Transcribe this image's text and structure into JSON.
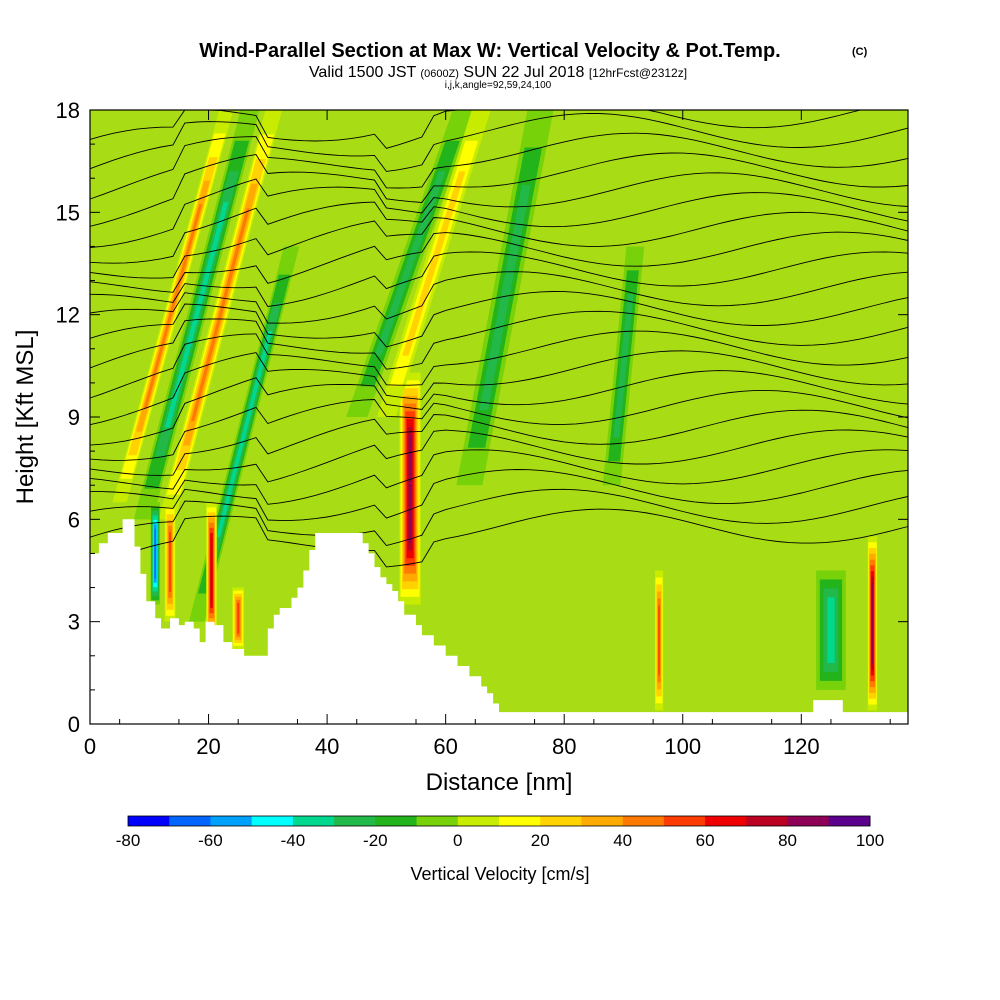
{
  "title": {
    "main": "Wind-Parallel Section at Max W: Vertical Velocity & Pot.Temp.",
    "mark": "(C)",
    "valid_a": "Valid 1500 JST",
    "valid_b": "(0600Z)",
    "valid_c": "SUN 22 Jul 2018",
    "valid_d": "[12hrFcst@2312z]",
    "params": "i,j,k,angle=92,59,24,100"
  },
  "chart_data": {
    "type": "heatmap",
    "xlabel": "Distance [nm]",
    "ylabel": "Height [Kft MSL]",
    "xlim": [
      0,
      138
    ],
    "ylim": [
      0,
      18
    ],
    "x_ticks": [
      0,
      20,
      40,
      60,
      80,
      100,
      120
    ],
    "y_ticks": [
      0,
      3,
      6,
      9,
      12,
      15,
      18
    ],
    "x_tick_labels": [
      "0",
      "20",
      "40",
      "60",
      "80",
      "100",
      "120"
    ],
    "y_tick_labels": [
      "0",
      "3",
      "6",
      "9",
      "12",
      "15",
      "18"
    ],
    "colorbar": {
      "label": "Vertical Velocity [cm/s]",
      "min": -80,
      "max": 100,
      "step": 10,
      "tick_values": [
        -80,
        -60,
        -40,
        -20,
        0,
        20,
        40,
        60,
        80,
        100
      ],
      "tick_labels": [
        "-80",
        "-60",
        "-40",
        "-20",
        "0",
        "20",
        "40",
        "60",
        "80",
        "100"
      ],
      "colors": [
        "#0000ff",
        "#0066ff",
        "#00a0ff",
        "#00ffff",
        "#00d890",
        "#22b84a",
        "#22b41a",
        "#77d20a",
        "#c8ec00",
        "#ffff00",
        "#ffd200",
        "#ffaa00",
        "#ff7a00",
        "#ff3c00",
        "#ee0000",
        "#bb0022",
        "#8e0055",
        "#5a008c"
      ]
    },
    "terrain_profile": [
      [
        0,
        5.0
      ],
      [
        1.5,
        5.0
      ],
      [
        1.5,
        5.3
      ],
      [
        3,
        5.3
      ],
      [
        3,
        5.6
      ],
      [
        5.5,
        5.6
      ],
      [
        5.5,
        6.0
      ],
      [
        7.5,
        6.0
      ],
      [
        7.5,
        5.2
      ],
      [
        8.5,
        5.2
      ],
      [
        8.5,
        4.4
      ],
      [
        9.5,
        4.4
      ],
      [
        9.5,
        3.6
      ],
      [
        11,
        3.6
      ],
      [
        11,
        3.1
      ],
      [
        12,
        3.1
      ],
      [
        12,
        2.8
      ],
      [
        13.5,
        2.8
      ],
      [
        13.5,
        3.1
      ],
      [
        15,
        3.1
      ],
      [
        15,
        2.9
      ],
      [
        16,
        2.9
      ],
      [
        16,
        3.0
      ],
      [
        17.5,
        3.0
      ],
      [
        17.5,
        2.8
      ],
      [
        18.5,
        2.8
      ],
      [
        18.5,
        2.4
      ],
      [
        19.5,
        2.4
      ],
      [
        19.5,
        3.0
      ],
      [
        21,
        3.0
      ],
      [
        21,
        2.9
      ],
      [
        22.5,
        2.9
      ],
      [
        22.5,
        2.4
      ],
      [
        24,
        2.4
      ],
      [
        24,
        2.2
      ],
      [
        26,
        2.2
      ],
      [
        26,
        2.0
      ],
      [
        30,
        2.0
      ],
      [
        30,
        2.8
      ],
      [
        31,
        2.8
      ],
      [
        31,
        3.2
      ],
      [
        32,
        3.2
      ],
      [
        32,
        3.4
      ],
      [
        34,
        3.4
      ],
      [
        34,
        3.7
      ],
      [
        35,
        3.7
      ],
      [
        35,
        4.0
      ],
      [
        36,
        4.0
      ],
      [
        36,
        4.5
      ],
      [
        37,
        4.5
      ],
      [
        37,
        5.1
      ],
      [
        38,
        5.1
      ],
      [
        38,
        5.6
      ],
      [
        46,
        5.6
      ],
      [
        46,
        5.3
      ],
      [
        47,
        5.3
      ],
      [
        47,
        5.0
      ],
      [
        48,
        5.0
      ],
      [
        48,
        4.6
      ],
      [
        49,
        4.6
      ],
      [
        49,
        4.3
      ],
      [
        50,
        4.3
      ],
      [
        50,
        4.1
      ],
      [
        51,
        4.1
      ],
      [
        51,
        3.9
      ],
      [
        52,
        3.9
      ],
      [
        52,
        3.6
      ],
      [
        53,
        3.6
      ],
      [
        53,
        3.2
      ],
      [
        55,
        3.2
      ],
      [
        55,
        2.9
      ],
      [
        56,
        2.9
      ],
      [
        56,
        2.6
      ],
      [
        58,
        2.6
      ],
      [
        58,
        2.3
      ],
      [
        60,
        2.3
      ],
      [
        60,
        2.0
      ],
      [
        62,
        2.0
      ],
      [
        62,
        1.7
      ],
      [
        64,
        1.7
      ],
      [
        64,
        1.4
      ],
      [
        66,
        1.4
      ],
      [
        66,
        1.1
      ],
      [
        67,
        1.1
      ],
      [
        67,
        0.9
      ],
      [
        68,
        0.9
      ],
      [
        68,
        0.6
      ],
      [
        69,
        0.6
      ],
      [
        69,
        0.35
      ],
      [
        122,
        0.35
      ],
      [
        122,
        0.7
      ],
      [
        127,
        0.7
      ],
      [
        127,
        0.35
      ],
      [
        138,
        0.35
      ],
      [
        138,
        0
      ],
      [
        0,
        0
      ]
    ],
    "velocity_features": [
      {
        "x0": 9,
        "x1": 27,
        "z0": 6.0,
        "z1": 18,
        "w": -35,
        "width": 1.6,
        "note": "downdraft band"
      },
      {
        "x0": 5,
        "x1": 23,
        "z0": 6.5,
        "z1": 18,
        "w": 45,
        "width": 1.2
      },
      {
        "x0": 13,
        "x1": 31,
        "z0": 6.0,
        "z1": 18,
        "w": 45,
        "width": 1.4
      },
      {
        "x0": 18,
        "x1": 34,
        "z0": 3.0,
        "z1": 14,
        "w": -38,
        "width": 1.3
      },
      {
        "x0": 20.5,
        "x1": 20.5,
        "z0": 2.5,
        "z1": 6.5,
        "w": 80,
        "width": 0.9
      },
      {
        "x0": 11,
        "x1": 11,
        "z0": 3.5,
        "z1": 6.5,
        "w": -70,
        "width": 0.8
      },
      {
        "x0": 13.5,
        "x1": 13.5,
        "z0": 3.0,
        "z1": 6.5,
        "w": 55,
        "width": 0.9
      },
      {
        "x0": 25,
        "x1": 25,
        "z0": 2.2,
        "z1": 4.0,
        "w": 55,
        "width": 1.0
      },
      {
        "x0": 54,
        "x1": 54,
        "z0": 3.5,
        "z1": 10.3,
        "w": 90,
        "width": 1.8
      },
      {
        "x0": 45,
        "x1": 63,
        "z0": 9.0,
        "z1": 18,
        "w": -30,
        "width": 1.8
      },
      {
        "x0": 50,
        "x1": 66,
        "z0": 9.0,
        "z1": 18,
        "w": 25,
        "width": 1.6
      },
      {
        "x0": 64,
        "x1": 76,
        "z0": 7.0,
        "z1": 18,
        "w": -25,
        "width": 2.2
      },
      {
        "x0": 88,
        "x1": 92,
        "z0": 7.0,
        "z1": 14,
        "w": -28,
        "width": 1.5
      },
      {
        "x0": 96,
        "x1": 96,
        "z0": 0.4,
        "z1": 4.5,
        "w": 55,
        "width": 0.7
      },
      {
        "x0": 132,
        "x1": 132,
        "z0": 0.4,
        "z1": 5.5,
        "w": 85,
        "width": 0.8
      },
      {
        "x0": 125,
        "x1": 125,
        "z0": 1.0,
        "z1": 4.5,
        "w": -40,
        "width": 2.5
      }
    ]
  }
}
